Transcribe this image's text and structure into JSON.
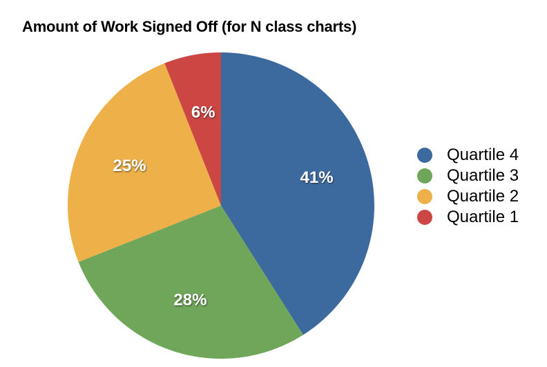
{
  "chart_data": {
    "type": "pie",
    "title": "Amount of Work Signed Off (for N class charts)",
    "slices": [
      {
        "name": "Quartile 4",
        "value": 41,
        "label": "41%",
        "color": "#3d6a9e"
      },
      {
        "name": "Quartile 3",
        "value": 28,
        "label": "28%",
        "color": "#6fa65a"
      },
      {
        "name": "Quartile 2",
        "value": 25,
        "label": "25%",
        "color": "#eeb049"
      },
      {
        "name": "Quartile 1",
        "value": 6,
        "label": "6%",
        "color": "#cc4643"
      }
    ],
    "legend_position": "right",
    "start_angle": "12 o'clock, clockwise"
  }
}
